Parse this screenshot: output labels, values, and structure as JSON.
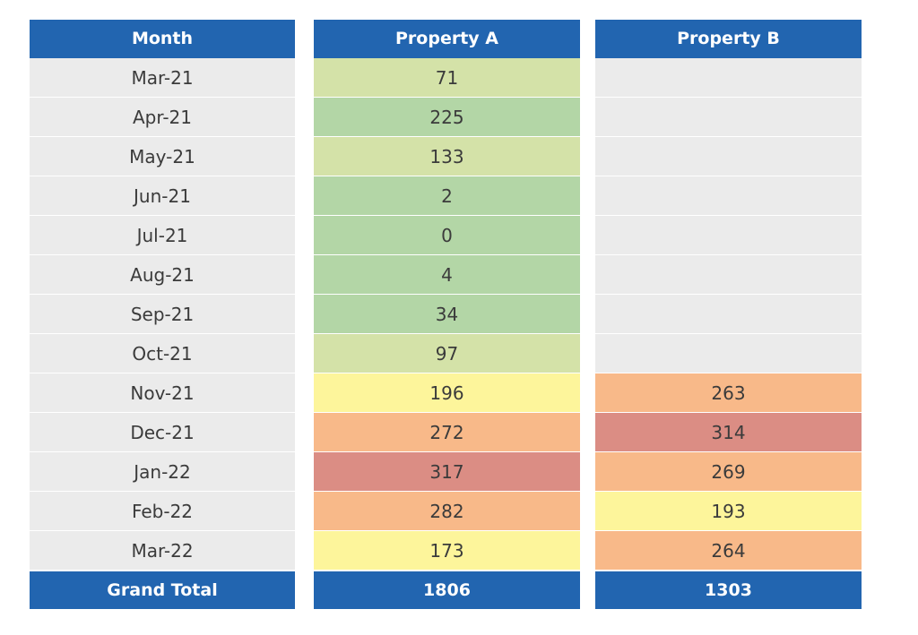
{
  "chart_data": {
    "type": "table",
    "columns": [
      "Month",
      "Property A",
      "Property B"
    ],
    "rows": [
      {
        "month": "Mar-21",
        "a": "71",
        "b": "",
        "a_color": "#d4e2a8",
        "b_color": "#ebebeb"
      },
      {
        "month": "Apr-21",
        "a": "225",
        "b": "",
        "a_color": "#b3d6a6",
        "b_color": "#ebebeb"
      },
      {
        "month": "May-21",
        "a": "133",
        "b": "",
        "a_color": "#d4e2a8",
        "b_color": "#ebebeb"
      },
      {
        "month": "Jun-21",
        "a": "2",
        "b": "",
        "a_color": "#b3d6a6",
        "b_color": "#ebebeb"
      },
      {
        "month": "Jul-21",
        "a": "0",
        "b": "",
        "a_color": "#b3d6a6",
        "b_color": "#ebebeb"
      },
      {
        "month": "Aug-21",
        "a": "4",
        "b": "",
        "a_color": "#b3d6a6",
        "b_color": "#ebebeb"
      },
      {
        "month": "Sep-21",
        "a": "34",
        "b": "",
        "a_color": "#b3d6a6",
        "b_color": "#ebebeb"
      },
      {
        "month": "Oct-21",
        "a": "97",
        "b": "",
        "a_color": "#d4e2a8",
        "b_color": "#ebebeb"
      },
      {
        "month": "Nov-21",
        "a": "196",
        "b": "263",
        "a_color": "#fdf59b",
        "b_color": "#f8b989"
      },
      {
        "month": "Dec-21",
        "a": "272",
        "b": "314",
        "a_color": "#f8b989",
        "b_color": "#db8d84"
      },
      {
        "month": "Jan-22",
        "a": "317",
        "b": "269",
        "a_color": "#db8d84",
        "b_color": "#f8b989"
      },
      {
        "month": "Feb-22",
        "a": "282",
        "b": "193",
        "a_color": "#f8b989",
        "b_color": "#fdf59b"
      },
      {
        "month": "Mar-22",
        "a": "173",
        "b": "264",
        "a_color": "#fdf59b",
        "b_color": "#f8b989"
      }
    ],
    "total": {
      "label": "Grand Total",
      "a": "1806",
      "b": "1303"
    },
    "header_color": "#2265b0"
  }
}
